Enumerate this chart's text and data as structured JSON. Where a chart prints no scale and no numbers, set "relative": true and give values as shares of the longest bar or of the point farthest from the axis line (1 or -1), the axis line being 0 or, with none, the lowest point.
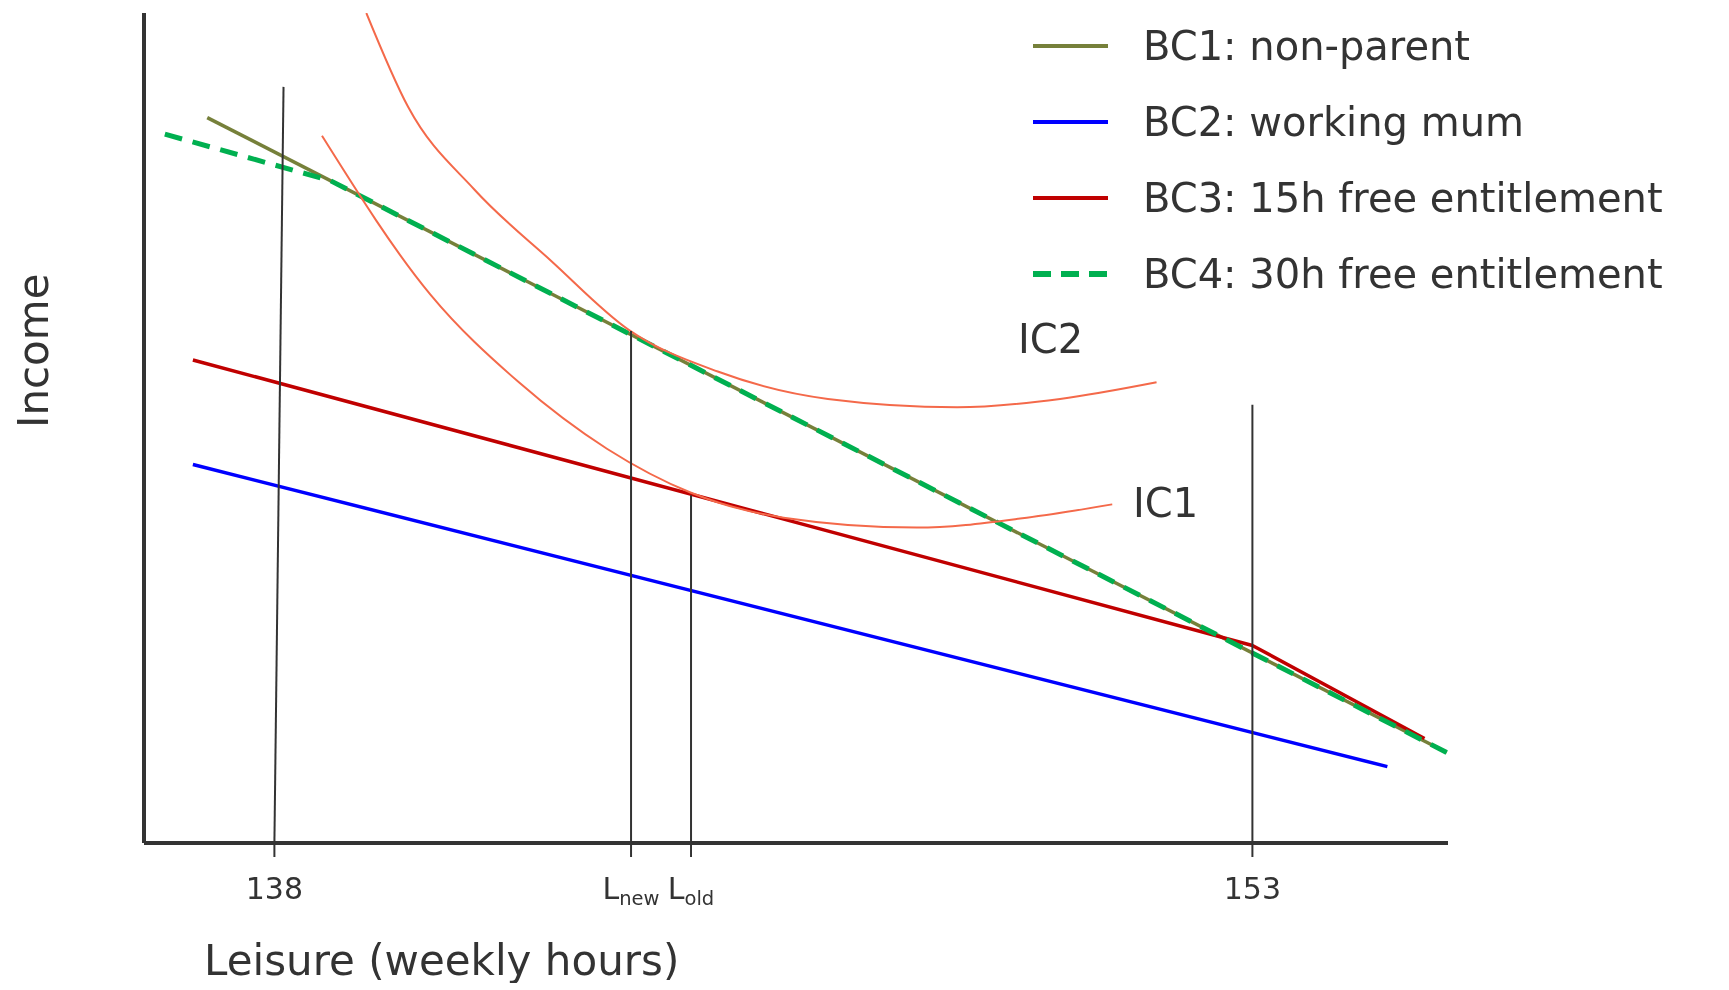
{
  "chart_data": {
    "type": "line",
    "relative": true,
    "xlabel": "Leisure (weekly hours)",
    "ylabel": "Income",
    "xlim": [
      136,
      156
    ],
    "xticks": [
      138,
      {
        "value": 143.47,
        "label": "L$_{new}$"
      },
      {
        "value": 144.39,
        "label": "L$_{old}$"
      },
      153
    ],
    "legend": "top right",
    "marker": "none",
    "series": [
      {
        "name": "BC1: non-parent",
        "color": "#76803a",
        "line_style": "solid",
        "x": [
          136.97,
          155.98
        ],
        "values": [
          0.874,
          0.109
        ]
      },
      {
        "name": "BC2: working mum",
        "color": "#0000ff",
        "line_style": "solid",
        "x": [
          136.75,
          155.07
        ],
        "values": [
          0.456,
          0.092
        ]
      },
      {
        "name": "BC3: 15h free entitlement",
        "color": "#c00000",
        "line_style": "solid",
        "x": [
          136.75,
          153,
          155.64
        ],
        "values": [
          0.582,
          0.238,
          0.126
        ]
      },
      {
        "name": "BC4: 30h free entitlement",
        "color": "#00b050",
        "line_style": "dashed",
        "x": [
          136.32,
          138.86,
          155.98
        ],
        "values": [
          0.854,
          0.798,
          0.109
        ]
      },
      {
        "color": "#f4694a",
        "line_style": "solid",
        "x": [
          139.41,
          140.05,
          141.07,
          142.25,
          143.44,
          144.8,
          146.49,
          148.47,
          150.05,
          151.53
        ],
        "values": [
          1.0,
          0.887,
          0.787,
          0.701,
          0.618,
          0.568,
          0.535,
          0.525,
          0.535,
          0.555
        ]
      },
      {
        "color": "#f4694a",
        "line_style": "solid",
        "x": [
          138.73,
          140.39,
          141.75,
          143.1,
          144.39,
          145.81,
          147.85,
          149.54,
          150.85
        ],
        "values": [
          0.852,
          0.661,
          0.555,
          0.475,
          0.422,
          0.392,
          0.38,
          0.392,
          0.408
        ]
      },
      {
        "color": "#333333",
        "line_style": "solid",
        "x": [
          138.14,
          138
        ],
        "values": [
          0.911,
          0
        ]
      },
      {
        "color": "#333333",
        "line_style": "solid",
        "x": [
          143.47,
          143.47
        ],
        "values": [
          0.617,
          0
        ]
      },
      {
        "color": "#333333",
        "line_style": "solid",
        "x": [
          144.39,
          144.39
        ],
        "values": [
          0.419,
          0
        ]
      },
      {
        "color": "#333333",
        "line_style": "solid",
        "x": [
          153,
          153
        ],
        "values": [
          0.528,
          0
        ]
      }
    ],
    "annotations": [
      "IC2",
      "IC1"
    ]
  }
}
